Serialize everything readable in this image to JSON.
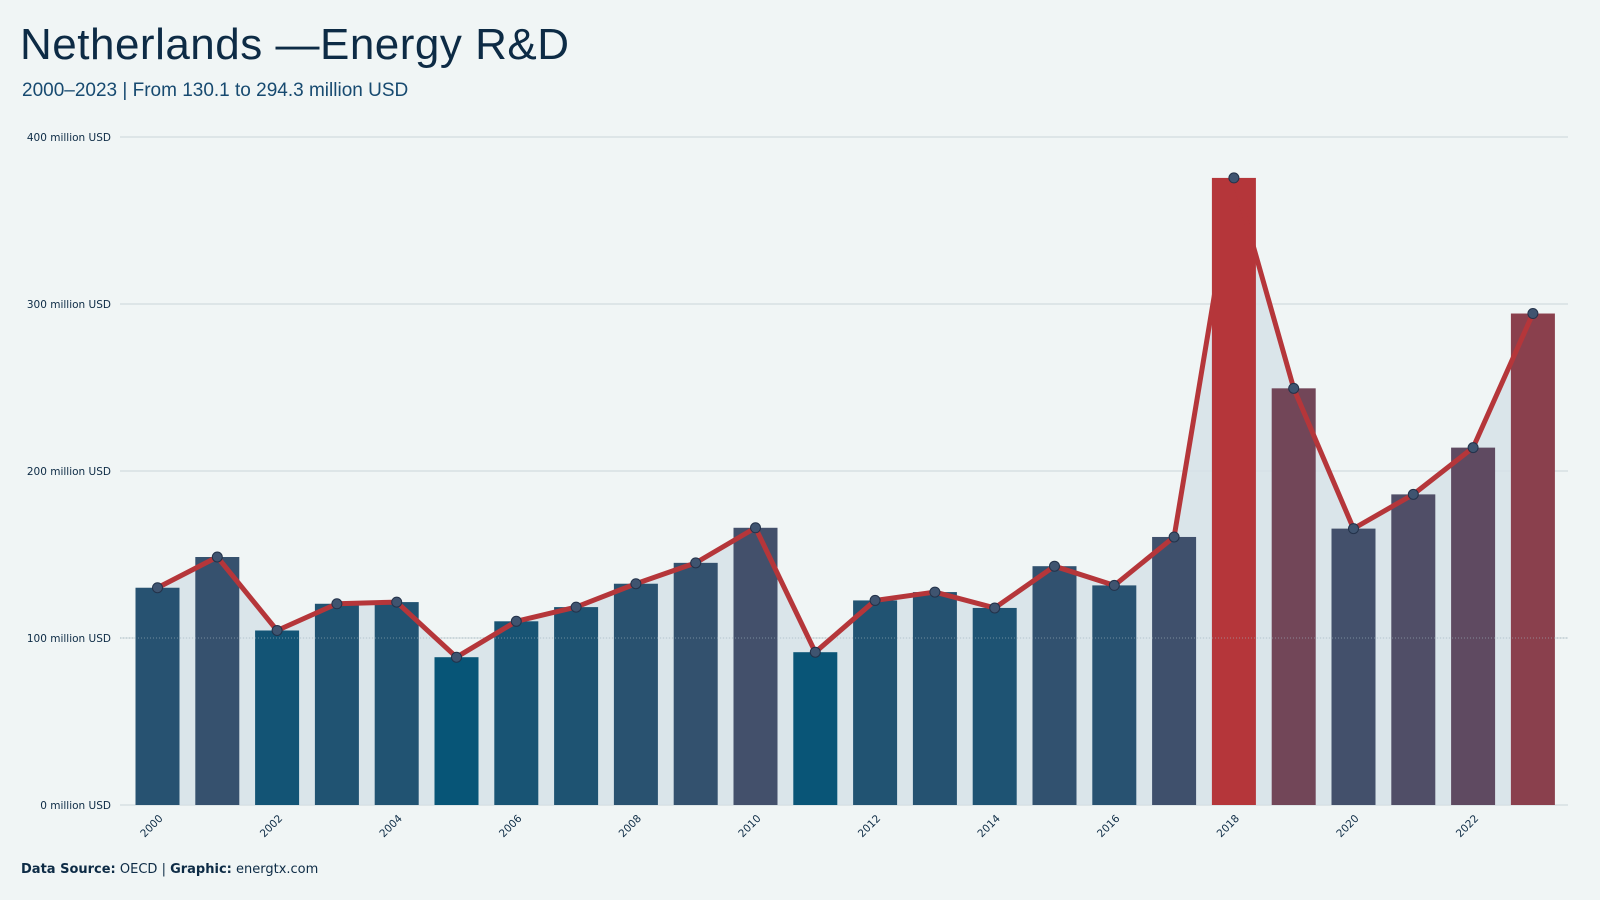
{
  "header": {
    "title": "Netherlands —Energy R&D",
    "subtitle": "2000–2023 | From 130.1 to 294.3 million USD"
  },
  "footer": {
    "source_label": "Data Source:",
    "source_value": " OECD | ",
    "graphic_label": "Graphic:",
    "graphic_value": " energtx.com"
  },
  "colors": {
    "background": "#f0f5f5",
    "line": "#b5363a",
    "marker": "#3f5470",
    "area": "#d6e2e7",
    "grid": "#dde5e7",
    "bar_low": "#075577",
    "bar_mid": "#4a4f6a",
    "bar_high": "#b5363a"
  },
  "chart_data": {
    "type": "bar",
    "x": [
      2000,
      2001,
      2002,
      2003,
      2004,
      2005,
      2006,
      2007,
      2008,
      2009,
      2010,
      2011,
      2012,
      2013,
      2014,
      2015,
      2016,
      2017,
      2018,
      2019,
      2020,
      2021,
      2022,
      2023
    ],
    "x_tick_labels": [
      "2000",
      "2002",
      "2004",
      "2006",
      "2008",
      "2010",
      "2012",
      "2014",
      "2016",
      "2018",
      "2020",
      "2022"
    ],
    "series": [
      {
        "values": [
          130.1,
          148.5,
          104.5,
          120.5,
          121.5,
          88.5,
          110.0,
          118.5,
          132.5,
          145.0,
          166.0,
          91.5,
          122.5,
          127.5,
          118.0,
          143.0,
          131.5,
          160.5,
          375.5,
          249.5,
          165.5,
          186.0,
          214.0,
          294.3
        ]
      }
    ],
    "overlay": "line with markers and filled area",
    "y_ticks": [
      0,
      100,
      200,
      300,
      400
    ],
    "y_tick_labels": [
      "0 million USD",
      "100 million USD",
      "200 million USD",
      "300 million USD",
      "400 million USD"
    ],
    "ylim": [
      0,
      400
    ],
    "xlabel": "",
    "ylabel": "",
    "grid": true
  }
}
